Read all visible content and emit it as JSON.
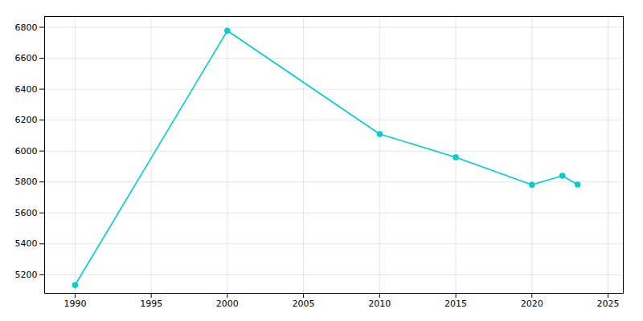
{
  "chart_data": {
    "type": "line",
    "x": [
      1990,
      2000,
      2010,
      2015,
      2020,
      2022,
      2023
    ],
    "values": [
      5133,
      6778,
      6110,
      5960,
      5782,
      5840,
      5783
    ],
    "color": "#00CED1",
    "marker": "circle",
    "xlim": [
      1988,
      2026
    ],
    "ylim": [
      5080,
      6870
    ],
    "xticks": [
      1990,
      1995,
      2000,
      2005,
      2010,
      2015,
      2020,
      2025
    ],
    "yticks": [
      5200,
      5400,
      5600,
      5800,
      6000,
      6200,
      6400,
      6600,
      6800
    ],
    "grid": true
  }
}
